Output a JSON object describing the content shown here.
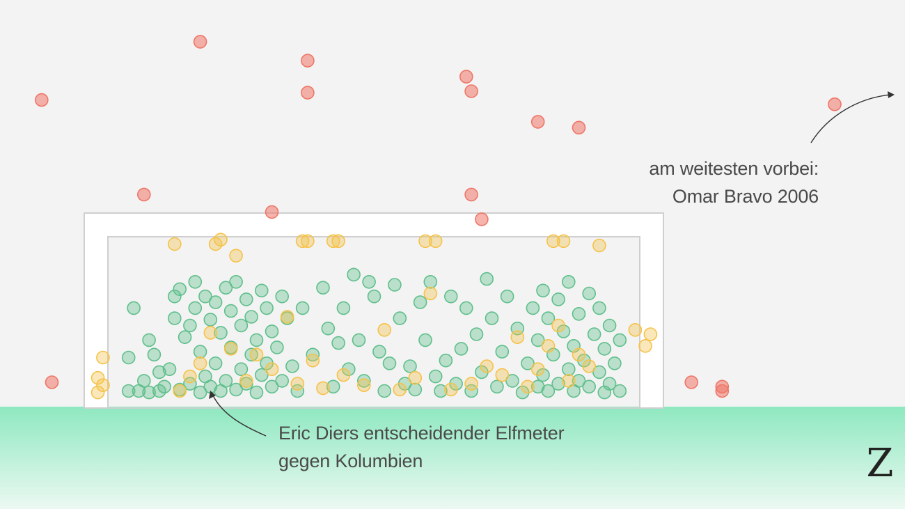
{
  "chart_data": {
    "type": "scatter",
    "title": "",
    "xlabel": "",
    "ylabel": "",
    "grid": false,
    "legend": "none",
    "series": [
      {
        "outcome": "goal",
        "color": "#5fbf8c",
        "points": [
          [
            0.02,
            0.05
          ],
          [
            0.02,
            0.28
          ],
          [
            0.04,
            0.05
          ],
          [
            0.05,
            0.12
          ],
          [
            0.06,
            0.04
          ],
          [
            0.06,
            0.4
          ],
          [
            0.07,
            0.3
          ],
          [
            0.08,
            0.05
          ],
          [
            0.08,
            0.18
          ],
          [
            0.09,
            0.08
          ],
          [
            0.1,
            0.2
          ],
          [
            0.11,
            0.55
          ],
          [
            0.11,
            0.7
          ],
          [
            0.12,
            0.75
          ],
          [
            0.12,
            0.06
          ],
          [
            0.13,
            0.42
          ],
          [
            0.14,
            0.5
          ],
          [
            0.14,
            0.1
          ],
          [
            0.15,
            0.62
          ],
          [
            0.15,
            0.8
          ],
          [
            0.16,
            0.04
          ],
          [
            0.16,
            0.32
          ],
          [
            0.17,
            0.7
          ],
          [
            0.17,
            0.15
          ],
          [
            0.18,
            0.54
          ],
          [
            0.18,
            0.08
          ],
          [
            0.19,
            0.66
          ],
          [
            0.19,
            0.24
          ],
          [
            0.2,
            0.05
          ],
          [
            0.2,
            0.45
          ],
          [
            0.21,
            0.76
          ],
          [
            0.21,
            0.12
          ],
          [
            0.22,
            0.6
          ],
          [
            0.22,
            0.35
          ],
          [
            0.23,
            0.8
          ],
          [
            0.23,
            0.06
          ],
          [
            0.24,
            0.5
          ],
          [
            0.24,
            0.2
          ],
          [
            0.25,
            0.68
          ],
          [
            0.25,
            0.1
          ],
          [
            0.26,
            0.3
          ],
          [
            0.26,
            0.56
          ],
          [
            0.27,
            0.4
          ],
          [
            0.27,
            0.04
          ],
          [
            0.28,
            0.74
          ],
          [
            0.28,
            0.16
          ],
          [
            0.29,
            0.62
          ],
          [
            0.29,
            0.24
          ],
          [
            0.3,
            0.46
          ],
          [
            0.3,
            0.08
          ],
          [
            0.31,
            0.35
          ],
          [
            0.32,
            0.7
          ],
          [
            0.32,
            0.12
          ],
          [
            0.33,
            0.55
          ],
          [
            0.34,
            0.22
          ],
          [
            0.35,
            0.05
          ],
          [
            0.36,
            0.62
          ],
          [
            0.38,
            0.3
          ],
          [
            0.4,
            0.76
          ],
          [
            0.41,
            0.48
          ],
          [
            0.42,
            0.08
          ],
          [
            0.43,
            0.38
          ],
          [
            0.44,
            0.62
          ],
          [
            0.45,
            0.2
          ],
          [
            0.46,
            0.85
          ],
          [
            0.47,
            0.4
          ],
          [
            0.48,
            0.12
          ],
          [
            0.49,
            0.8
          ],
          [
            0.5,
            0.7
          ],
          [
            0.51,
            0.32
          ],
          [
            0.52,
            0.05
          ],
          [
            0.53,
            0.24
          ],
          [
            0.54,
            0.78
          ],
          [
            0.55,
            0.55
          ],
          [
            0.56,
            0.1
          ],
          [
            0.57,
            0.22
          ],
          [
            0.58,
            0.06
          ],
          [
            0.59,
            0.66
          ],
          [
            0.6,
            0.4
          ],
          [
            0.61,
            0.8
          ],
          [
            0.62,
            0.15
          ],
          [
            0.63,
            0.05
          ],
          [
            0.64,
            0.26
          ],
          [
            0.65,
            0.7
          ],
          [
            0.66,
            0.1
          ],
          [
            0.67,
            0.34
          ],
          [
            0.68,
            0.62
          ],
          [
            0.69,
            0.05
          ],
          [
            0.7,
            0.44
          ],
          [
            0.71,
            0.18
          ],
          [
            0.72,
            0.82
          ],
          [
            0.73,
            0.55
          ],
          [
            0.74,
            0.08
          ],
          [
            0.75,
            0.32
          ],
          [
            0.76,
            0.7
          ],
          [
            0.77,
            0.12
          ],
          [
            0.78,
            0.48
          ],
          [
            0.79,
            0.04
          ],
          [
            0.8,
            0.24
          ],
          [
            0.81,
            0.62
          ],
          [
            0.82,
            0.08
          ],
          [
            0.82,
            0.4
          ],
          [
            0.83,
            0.74
          ],
          [
            0.83,
            0.16
          ],
          [
            0.84,
            0.55
          ],
          [
            0.84,
            0.05
          ],
          [
            0.85,
            0.3
          ],
          [
            0.86,
            0.68
          ],
          [
            0.86,
            0.1
          ],
          [
            0.87,
            0.46
          ],
          [
            0.88,
            0.2
          ],
          [
            0.88,
            0.8
          ],
          [
            0.89,
            0.05
          ],
          [
            0.89,
            0.36
          ],
          [
            0.9,
            0.58
          ],
          [
            0.9,
            0.12
          ],
          [
            0.91,
            0.26
          ],
          [
            0.92,
            0.72
          ],
          [
            0.92,
            0.08
          ],
          [
            0.93,
            0.44
          ],
          [
            0.94,
            0.18
          ],
          [
            0.94,
            0.62
          ],
          [
            0.95,
            0.04
          ],
          [
            0.95,
            0.34
          ],
          [
            0.96,
            0.5
          ],
          [
            0.96,
            0.1
          ],
          [
            0.97,
            0.24
          ],
          [
            0.98,
            0.05
          ],
          [
            0.98,
            0.4
          ],
          [
            0.03,
            0.62
          ]
        ]
      },
      {
        "outcome": "saved",
        "color": "#f5c24a",
        "points": [
          [
            -0.04,
            0.04
          ],
          [
            -0.04,
            0.14
          ],
          [
            -0.03,
            0.28
          ],
          [
            -0.03,
            0.09
          ],
          [
            0.11,
            1.06
          ],
          [
            0.19,
            1.06
          ],
          [
            0.2,
            1.09
          ],
          [
            0.23,
            0.98
          ],
          [
            0.36,
            1.08
          ],
          [
            0.37,
            1.08
          ],
          [
            0.42,
            1.08
          ],
          [
            0.43,
            1.08
          ],
          [
            0.6,
            1.08
          ],
          [
            0.62,
            1.08
          ],
          [
            0.85,
            1.08
          ],
          [
            0.87,
            1.08
          ],
          [
            0.94,
            1.05
          ],
          [
            1.01,
            0.47
          ],
          [
            1.03,
            0.36
          ],
          [
            1.04,
            0.44
          ],
          [
            0.16,
            0.24
          ],
          [
            0.18,
            0.45
          ],
          [
            0.22,
            0.34
          ],
          [
            0.25,
            0.12
          ],
          [
            0.27,
            0.3
          ],
          [
            0.3,
            0.2
          ],
          [
            0.33,
            0.56
          ],
          [
            0.35,
            0.1
          ],
          [
            0.38,
            0.26
          ],
          [
            0.4,
            0.07
          ],
          [
            0.44,
            0.16
          ],
          [
            0.48,
            0.09
          ],
          [
            0.52,
            0.47
          ],
          [
            0.55,
            0.06
          ],
          [
            0.58,
            0.14
          ],
          [
            0.61,
            0.72
          ],
          [
            0.65,
            0.06
          ],
          [
            0.69,
            0.1
          ],
          [
            0.72,
            0.22
          ],
          [
            0.75,
            0.16
          ],
          [
            0.78,
            0.42
          ],
          [
            0.8,
            0.08
          ],
          [
            0.82,
            0.2
          ],
          [
            0.84,
            0.36
          ],
          [
            0.86,
            0.5
          ],
          [
            0.88,
            0.12
          ],
          [
            0.9,
            0.3
          ],
          [
            0.92,
            0.22
          ],
          [
            0.14,
            0.15
          ],
          [
            0.12,
            0.05
          ]
        ]
      },
      {
        "outcome": "missed",
        "color": "#ef7668",
        "points": [
          [
            -0.15,
            2.05
          ],
          [
            -0.13,
            0.11
          ],
          [
            0.05,
            1.4
          ],
          [
            0.16,
            2.45
          ],
          [
            0.3,
            1.28
          ],
          [
            0.37,
            2.1
          ],
          [
            0.37,
            2.32
          ],
          [
            0.69,
            1.4
          ],
          [
            0.71,
            1.23
          ],
          [
            0.68,
            2.21
          ],
          [
            0.69,
            2.11
          ],
          [
            0.82,
            1.9
          ],
          [
            0.9,
            1.86
          ],
          [
            1.12,
            0.11
          ],
          [
            1.18,
            0.08
          ],
          [
            1.18,
            0.05
          ],
          [
            1.4,
            2.02
          ]
        ]
      }
    ]
  },
  "annotations": {
    "farthest_line1": "am weitesten vorbei:",
    "farthest_line2": "Omar Bravo 2006",
    "dier_line1": "Eric Diers entscheidender Elfmeter",
    "dier_line2": "gegen Kolumbien"
  },
  "logo": "Z"
}
